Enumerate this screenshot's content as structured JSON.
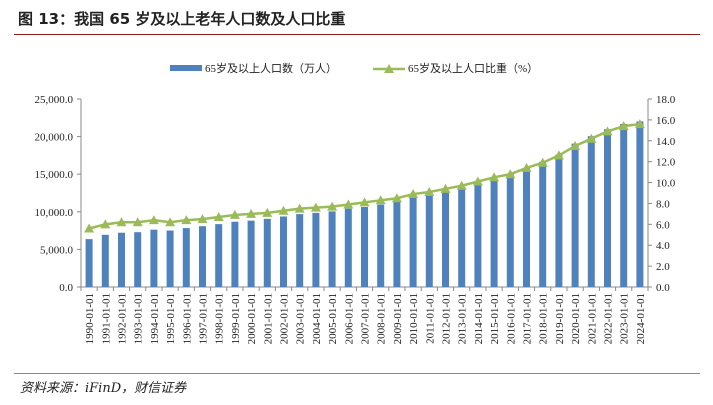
{
  "title": "图 13：我国 65 岁及以上老年人口数及人口比重",
  "source": "资料来源：iFinD，财信证券",
  "chart_data": {
    "type": "bar+line",
    "categories": [
      "1990-01-01",
      "1991-01-01",
      "1992-01-01",
      "1993-01-01",
      "1994-01-01",
      "1995-01-01",
      "1996-01-01",
      "1997-01-01",
      "1998-01-01",
      "1999-01-01",
      "2000-01-01",
      "2001-01-01",
      "2002-01-01",
      "2003-01-01",
      "2004-01-01",
      "2005-01-01",
      "2006-01-01",
      "2007-01-01",
      "2008-01-01",
      "2009-01-01",
      "2010-01-01",
      "2011-01-01",
      "2012-01-01",
      "2013-01-01",
      "2014-01-01",
      "2015-01-01",
      "2016-01-01",
      "2017-01-01",
      "2018-01-01",
      "2019-01-01",
      "2020-01-01",
      "2021-01-01",
      "2022-01-01",
      "2023-01-01",
      "2024-01-01"
    ],
    "series": [
      {
        "name": "65岁及以上人口数（万人）",
        "type": "bar",
        "axis": "left",
        "color": "#4f81bd",
        "values": [
          6368,
          6938,
          7218,
          7289,
          7622,
          7510,
          7833,
          8085,
          8359,
          8679,
          8821,
          9062,
          9377,
          9692,
          9857,
          10055,
          10419,
          10636,
          10956,
          11307,
          11894,
          12288,
          12714,
          13161,
          13755,
          14386,
          15003,
          15831,
          16658,
          17603,
          19064,
          20056,
          20978,
          21676,
          22023
        ]
      },
      {
        "name": "65岁及以上人口比重（%）",
        "type": "line",
        "axis": "right",
        "color": "#9bbb59",
        "marker": "triangle",
        "values": [
          5.6,
          6.0,
          6.2,
          6.2,
          6.4,
          6.2,
          6.4,
          6.5,
          6.7,
          6.9,
          7.0,
          7.1,
          7.3,
          7.5,
          7.6,
          7.7,
          7.9,
          8.1,
          8.3,
          8.5,
          8.9,
          9.1,
          9.4,
          9.7,
          10.1,
          10.5,
          10.8,
          11.4,
          11.9,
          12.6,
          13.5,
          14.2,
          14.9,
          15.4,
          15.6
        ]
      }
    ],
    "left_axis": {
      "ylim": [
        0,
        25000
      ],
      "ticks": [
        "0.0",
        "5,000.0",
        "10,000.0",
        "15,000.0",
        "20,000.0",
        "25,000.0"
      ]
    },
    "right_axis": {
      "ylim": [
        0,
        18
      ],
      "ticks": [
        "0.0",
        "2.0",
        "4.0",
        "6.0",
        "8.0",
        "10.0",
        "12.0",
        "14.0",
        "16.0",
        "18.0"
      ]
    },
    "legend": "top",
    "grid": false
  }
}
